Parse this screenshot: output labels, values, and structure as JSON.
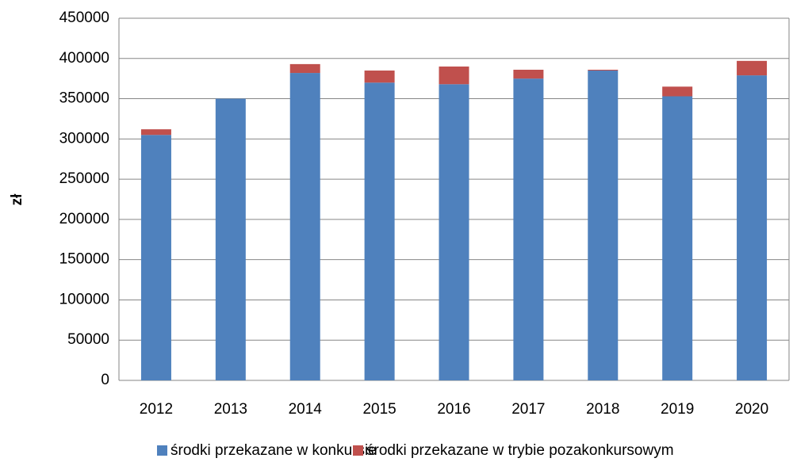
{
  "chart_data": {
    "type": "stacked-bar",
    "ylabel": "zł",
    "categories": [
      "2012",
      "2013",
      "2014",
      "2015",
      "2016",
      "2017",
      "2018",
      "2019",
      "2020"
    ],
    "series": [
      {
        "name": "środki przekazane w konkursie",
        "color": "#4f81bd",
        "values": [
          305000,
          350000,
          382000,
          370000,
          368000,
          375000,
          385000,
          353000,
          379000
        ]
      },
      {
        "name": "środki przekazane w trybie pozakonkursowym",
        "color": "#c0504d",
        "values": [
          7000,
          0,
          11000,
          15000,
          22000,
          11000,
          1000,
          12000,
          18000
        ]
      }
    ],
    "ylim": [
      0,
      450000
    ],
    "yticks": [
      0,
      50000,
      100000,
      150000,
      200000,
      250000,
      300000,
      350000,
      400000,
      450000
    ],
    "grid": true,
    "legend": "bottom"
  }
}
